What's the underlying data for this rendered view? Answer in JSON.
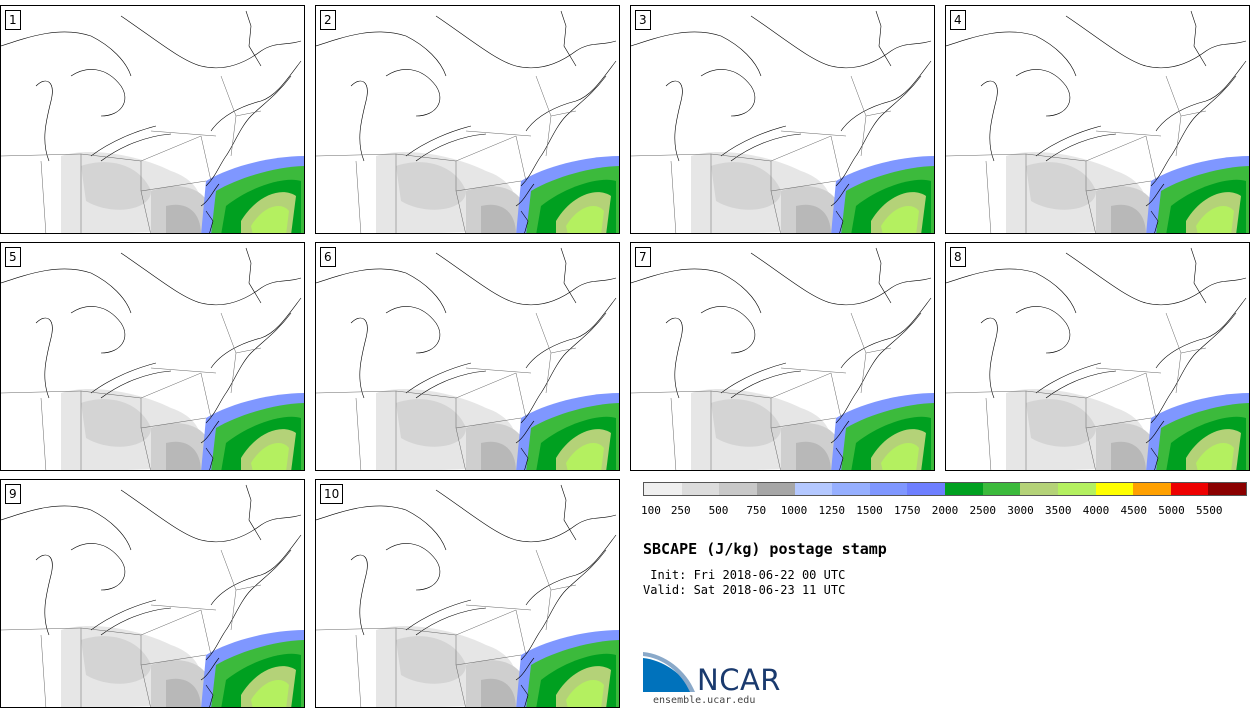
{
  "panels": [
    {
      "label": "1"
    },
    {
      "label": "2"
    },
    {
      "label": "3"
    },
    {
      "label": "4"
    },
    {
      "label": "5"
    },
    {
      "label": "6"
    },
    {
      "label": "7"
    },
    {
      "label": "8"
    },
    {
      "label": "9"
    },
    {
      "label": "10"
    }
  ],
  "colorbar": {
    "colors": [
      "#efefef",
      "#dcdcdc",
      "#c8c8c8",
      "#a6a6a6",
      "#b4c8ff",
      "#96afff",
      "#7f97ff",
      "#6e7fff",
      "#00a020",
      "#3cba3c",
      "#b4d278",
      "#b4f060",
      "#ffff00",
      "#ffa000",
      "#ee0000",
      "#8b0000"
    ],
    "ticks": [
      "100",
      "250",
      "500",
      "750",
      "1000",
      "1250",
      "1500",
      "1750",
      "2000",
      "2500",
      "3000",
      "3500",
      "4000",
      "4500",
      "5000",
      "5500"
    ]
  },
  "title": "SBCAPE (J/kg) postage stamp",
  "init": " Init: Fri 2018-06-22 00 UTC",
  "valid": "Valid: Sat 2018-06-23 11 UTC",
  "logo": {
    "text": "NCAR",
    "site": "ensemble.ucar.edu",
    "brand_color": "#1a3a6e",
    "accent_color": "#0072bc"
  }
}
